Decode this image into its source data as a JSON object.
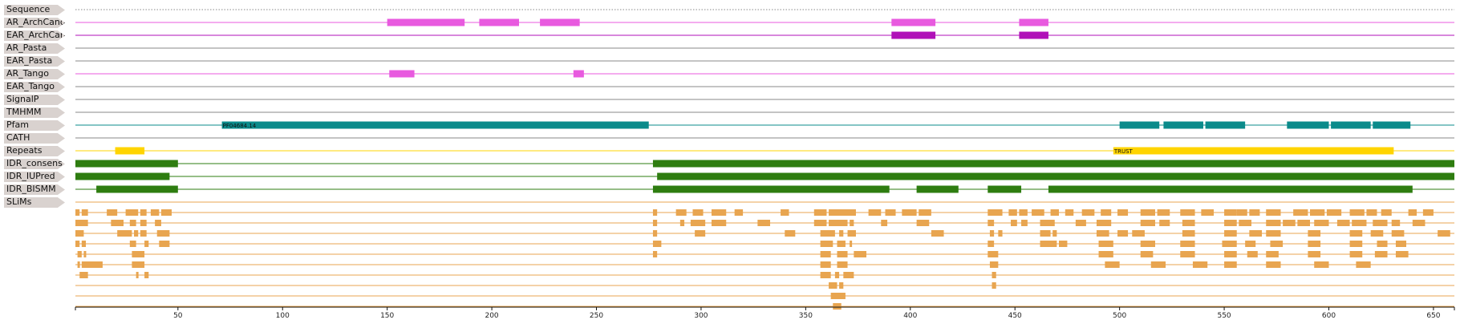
{
  "tracks": [
    {
      "label": "Sequence",
      "color": "#888888",
      "style": "dotted",
      "features": []
    },
    {
      "label": "AR_ArchCandy",
      "color": "#e85adf",
      "features": [
        [
          150,
          187
        ],
        [
          194,
          213
        ],
        [
          223,
          242
        ],
        [
          391,
          412
        ],
        [
          452,
          466
        ]
      ]
    },
    {
      "label": "EAR_ArchCandy",
      "color": "#b010b8",
      "features": [
        [
          391,
          412
        ],
        [
          452,
          466
        ]
      ]
    },
    {
      "label": "AR_Pasta",
      "color": "#888888",
      "features": []
    },
    {
      "label": "EAR_Pasta",
      "color": "#888888",
      "features": []
    },
    {
      "label": "AR_Tango",
      "color": "#e85adf",
      "features": [
        [
          151,
          163
        ],
        [
          239,
          244
        ]
      ]
    },
    {
      "label": "EAR_Tango",
      "color": "#888888",
      "features": []
    },
    {
      "label": "SignalP",
      "color": "#888888",
      "features": []
    },
    {
      "label": "TMHMM",
      "color": "#888888",
      "features": []
    },
    {
      "label": "Pfam",
      "color": "#0b8b8b",
      "features": [
        [
          71,
          275,
          "PF04684.14"
        ],
        [
          500,
          519
        ],
        [
          521,
          540
        ],
        [
          541,
          560
        ],
        [
          580,
          600
        ],
        [
          601,
          620
        ],
        [
          621,
          639
        ]
      ]
    },
    {
      "label": "CATH",
      "color": "#888888",
      "features": []
    },
    {
      "label": "Repeats",
      "color": "#ffd400",
      "features": [
        [
          20,
          34
        ],
        [
          497,
          631,
          "TRUST"
        ]
      ]
    },
    {
      "label": "IDR_consens",
      "color": "#2e7d10",
      "features": [
        [
          1,
          50
        ],
        [
          277,
          660
        ]
      ]
    },
    {
      "label": "IDR_IUPred",
      "color": "#2e7d10",
      "features": [
        [
          1,
          46
        ],
        [
          279,
          660
        ]
      ]
    },
    {
      "label": "IDR_BISMM",
      "color": "#2e7d10",
      "features": [
        [
          11,
          50
        ],
        [
          277,
          390
        ],
        [
          403,
          423
        ],
        [
          437,
          453
        ],
        [
          466,
          640
        ]
      ]
    },
    {
      "label": "SLiMs",
      "color": "#e8a550",
      "features": []
    }
  ],
  "slims": {
    "color": "#e8a550",
    "rows": [
      [
        [
          1,
          3
        ],
        [
          4,
          7
        ],
        [
          16,
          21
        ],
        [
          25,
          31
        ],
        [
          32,
          35
        ],
        [
          37,
          41
        ],
        [
          42,
          47
        ],
        [
          277,
          279
        ],
        [
          288,
          293
        ],
        [
          296,
          301
        ],
        [
          305,
          312
        ],
        [
          316,
          320
        ],
        [
          338,
          342
        ],
        [
          354,
          360
        ],
        [
          361,
          374
        ],
        [
          380,
          386
        ],
        [
          388,
          393
        ],
        [
          396,
          403
        ],
        [
          404,
          410
        ],
        [
          437,
          444
        ],
        [
          447,
          451
        ],
        [
          452,
          456
        ],
        [
          458,
          464
        ],
        [
          467,
          471
        ],
        [
          474,
          478
        ],
        [
          482,
          488
        ],
        [
          491,
          496
        ],
        [
          499,
          504
        ],
        [
          510,
          517
        ],
        [
          518,
          524
        ],
        [
          529,
          536
        ],
        [
          539,
          545
        ],
        [
          550,
          556
        ],
        [
          556,
          561
        ],
        [
          562,
          567
        ],
        [
          570,
          577
        ],
        [
          583,
          590
        ],
        [
          591,
          598
        ],
        [
          599,
          606
        ],
        [
          610,
          617
        ],
        [
          618,
          623
        ],
        [
          625,
          630
        ],
        [
          638,
          642
        ],
        [
          645,
          650
        ]
      ],
      [
        [
          1,
          7
        ],
        [
          18,
          24
        ],
        [
          27,
          30
        ],
        [
          32,
          35
        ],
        [
          39,
          42
        ],
        [
          277,
          279
        ],
        [
          290,
          292
        ],
        [
          295,
          302
        ],
        [
          305,
          312
        ],
        [
          327,
          333
        ],
        [
          354,
          360
        ],
        [
          361,
          370
        ],
        [
          371,
          373
        ],
        [
          386,
          389
        ],
        [
          403,
          409
        ],
        [
          437,
          440
        ],
        [
          448,
          451
        ],
        [
          453,
          456
        ],
        [
          462,
          469
        ],
        [
          479,
          484
        ],
        [
          489,
          496
        ],
        [
          510,
          517
        ],
        [
          519,
          524
        ],
        [
          530,
          536
        ],
        [
          550,
          556
        ],
        [
          557,
          563
        ],
        [
          570,
          577
        ],
        [
          578,
          584
        ],
        [
          585,
          591
        ],
        [
          593,
          600
        ],
        [
          604,
          610
        ],
        [
          611,
          618
        ],
        [
          621,
          628
        ],
        [
          630,
          634
        ],
        [
          640,
          646
        ]
      ],
      [
        [
          1,
          5
        ],
        [
          21,
          28
        ],
        [
          29,
          31
        ],
        [
          32,
          35
        ],
        [
          40,
          46
        ],
        [
          277,
          279
        ],
        [
          297,
          302
        ],
        [
          340,
          345
        ],
        [
          357,
          364
        ],
        [
          366,
          368
        ],
        [
          370,
          374
        ],
        [
          410,
          416
        ],
        [
          438,
          440
        ],
        [
          442,
          444
        ],
        [
          462,
          467
        ],
        [
          468,
          470
        ],
        [
          489,
          495
        ],
        [
          499,
          504
        ],
        [
          506,
          512
        ],
        [
          530,
          536
        ],
        [
          550,
          556
        ],
        [
          562,
          568
        ],
        [
          570,
          577
        ],
        [
          590,
          596
        ],
        [
          610,
          616
        ],
        [
          620,
          626
        ],
        [
          630,
          636
        ],
        [
          652,
          658
        ]
      ],
      [
        [
          1,
          3
        ],
        [
          4,
          6
        ],
        [
          27,
          30
        ],
        [
          34,
          36
        ],
        [
          41,
          46
        ],
        [
          277,
          281
        ],
        [
          357,
          363
        ],
        [
          365,
          369
        ],
        [
          371,
          372
        ],
        [
          437,
          440
        ],
        [
          462,
          470
        ],
        [
          471,
          475
        ],
        [
          490,
          497
        ],
        [
          510,
          517
        ],
        [
          529,
          536
        ],
        [
          549,
          556
        ],
        [
          560,
          565
        ],
        [
          572,
          578
        ],
        [
          590,
          596
        ],
        [
          610,
          616
        ],
        [
          623,
          628
        ],
        [
          632,
          637
        ]
      ],
      [
        [
          2,
          4
        ],
        [
          5,
          6
        ],
        [
          28,
          34
        ],
        [
          277,
          279
        ],
        [
          357,
          362
        ],
        [
          365,
          370
        ],
        [
          373,
          379
        ],
        [
          437,
          442
        ],
        [
          490,
          497
        ],
        [
          510,
          516
        ],
        [
          529,
          536
        ],
        [
          550,
          556
        ],
        [
          561,
          566
        ],
        [
          570,
          576
        ],
        [
          590,
          596
        ],
        [
          610,
          616
        ],
        [
          622,
          628
        ],
        [
          632,
          638
        ]
      ],
      [
        [
          2,
          3
        ],
        [
          4,
          14
        ],
        [
          28,
          34
        ],
        [
          357,
          362
        ],
        [
          365,
          370
        ],
        [
          438,
          442
        ],
        [
          493,
          500
        ],
        [
          515,
          522
        ],
        [
          535,
          542
        ],
        [
          550,
          556
        ],
        [
          570,
          577
        ],
        [
          593,
          600
        ],
        [
          613,
          620
        ]
      ],
      [
        [
          3,
          7
        ],
        [
          30,
          31
        ],
        [
          34,
          36
        ],
        [
          357,
          362
        ],
        [
          364,
          366
        ],
        [
          368,
          373
        ],
        [
          439,
          441
        ]
      ],
      [
        [
          361,
          365
        ],
        [
          366,
          368
        ],
        [
          439,
          441
        ]
      ],
      [
        [
          362,
          369
        ]
      ],
      [
        [
          363,
          367
        ]
      ]
    ]
  },
  "axis": {
    "min": 1,
    "max": 660,
    "ticks": [
      "50",
      "100",
      "150",
      "200",
      "250",
      "300",
      "350",
      "400",
      "450",
      "500",
      "550",
      "600",
      "650"
    ],
    "tick_values": [
      50,
      100,
      150,
      200,
      250,
      300,
      350,
      400,
      450,
      500,
      550,
      600,
      650
    ]
  }
}
